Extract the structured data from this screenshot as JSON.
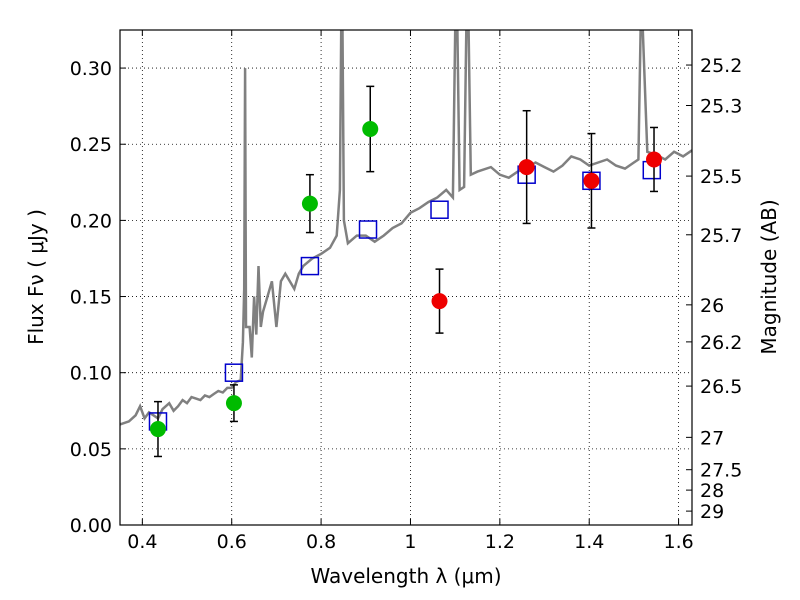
{
  "chart_data": {
    "type": "scatter",
    "xlabel": "Wavelength  λ (μm)",
    "ylabel": "Flux  Fν  ( μJy )",
    "ylabel2": "Magnitude (AB)",
    "xlim": [
      0.35,
      1.63
    ],
    "ylim": [
      0.0,
      0.325
    ],
    "grid": true,
    "x_ticks": [
      0.4,
      0.6,
      0.8,
      1.0,
      1.2,
      1.4,
      1.6
    ],
    "x_tick_labels": [
      "0.4",
      "0.6",
      "0.8",
      "1",
      "1.2",
      "1.4",
      "1.6"
    ],
    "y_ticks": [
      0.0,
      0.05,
      0.1,
      0.15,
      0.2,
      0.25,
      0.3
    ],
    "y_tick_labels": [
      "0.00",
      "0.05",
      "0.10",
      "0.15",
      "0.20",
      "0.25",
      "0.30"
    ],
    "mag_ticks": [
      "25.2",
      "25.3",
      "25.5",
      "25.7",
      "26",
      "26.2",
      "26.5",
      "27",
      "27.5",
      "28",
      "29"
    ],
    "colors": {
      "model": "#808080",
      "green": "#00bb00",
      "red": "#ee0000",
      "square": "#0000cc",
      "errorbar": "#000000"
    },
    "series": [
      {
        "kind": "line",
        "color": "#808080",
        "points": [
          [
            0.35,
            0.066
          ],
          [
            0.37,
            0.068
          ],
          [
            0.385,
            0.072
          ],
          [
            0.395,
            0.078
          ],
          [
            0.405,
            0.07
          ],
          [
            0.415,
            0.074
          ],
          [
            0.425,
            0.072
          ],
          [
            0.435,
            0.07
          ],
          [
            0.445,
            0.076
          ],
          [
            0.46,
            0.08
          ],
          [
            0.47,
            0.075
          ],
          [
            0.48,
            0.078
          ],
          [
            0.49,
            0.082
          ],
          [
            0.5,
            0.08
          ],
          [
            0.51,
            0.084
          ],
          [
            0.52,
            0.083
          ],
          [
            0.53,
            0.082
          ],
          [
            0.54,
            0.085
          ],
          [
            0.55,
            0.084
          ],
          [
            0.56,
            0.086
          ],
          [
            0.57,
            0.088
          ],
          [
            0.58,
            0.087
          ],
          [
            0.59,
            0.09
          ],
          [
            0.6,
            0.09
          ],
          [
            0.61,
            0.094
          ],
          [
            0.62,
            0.095
          ],
          [
            0.625,
            0.12
          ],
          [
            0.628,
            0.155
          ],
          [
            0.63,
            0.3
          ],
          [
            0.632,
            0.13
          ],
          [
            0.64,
            0.13
          ],
          [
            0.645,
            0.11
          ],
          [
            0.65,
            0.15
          ],
          [
            0.655,
            0.125
          ],
          [
            0.66,
            0.17
          ],
          [
            0.665,
            0.13
          ],
          [
            0.67,
            0.14
          ],
          [
            0.68,
            0.15
          ],
          [
            0.69,
            0.16
          ],
          [
            0.7,
            0.13
          ],
          [
            0.71,
            0.16
          ],
          [
            0.72,
            0.165
          ],
          [
            0.73,
            0.16
          ],
          [
            0.74,
            0.155
          ],
          [
            0.75,
            0.165
          ],
          [
            0.76,
            0.17
          ],
          [
            0.78,
            0.175
          ],
          [
            0.8,
            0.178
          ],
          [
            0.82,
            0.182
          ],
          [
            0.835,
            0.19
          ],
          [
            0.842,
            0.22
          ],
          [
            0.845,
            0.325
          ],
          [
            0.848,
            0.325
          ],
          [
            0.851,
            0.2
          ],
          [
            0.86,
            0.185
          ],
          [
            0.88,
            0.19
          ],
          [
            0.9,
            0.19
          ],
          [
            0.91,
            0.188
          ],
          [
            0.92,
            0.186
          ],
          [
            0.94,
            0.19
          ],
          [
            0.96,
            0.195
          ],
          [
            0.98,
            0.198
          ],
          [
            1.0,
            0.205
          ],
          [
            1.02,
            0.208
          ],
          [
            1.04,
            0.212
          ],
          [
            1.06,
            0.215
          ],
          [
            1.08,
            0.22
          ],
          [
            1.095,
            0.215
          ],
          [
            1.1,
            0.325
          ],
          [
            1.105,
            0.325
          ],
          [
            1.11,
            0.22
          ],
          [
            1.12,
            0.222
          ],
          [
            1.125,
            0.325
          ],
          [
            1.13,
            0.325
          ],
          [
            1.135,
            0.23
          ],
          [
            1.15,
            0.232
          ],
          [
            1.18,
            0.235
          ],
          [
            1.2,
            0.23
          ],
          [
            1.22,
            0.228
          ],
          [
            1.24,
            0.232
          ],
          [
            1.26,
            0.235
          ],
          [
            1.28,
            0.238
          ],
          [
            1.3,
            0.235
          ],
          [
            1.32,
            0.232
          ],
          [
            1.34,
            0.236
          ],
          [
            1.36,
            0.242
          ],
          [
            1.38,
            0.24
          ],
          [
            1.4,
            0.236
          ],
          [
            1.42,
            0.238
          ],
          [
            1.44,
            0.24
          ],
          [
            1.46,
            0.236
          ],
          [
            1.48,
            0.234
          ],
          [
            1.5,
            0.238
          ],
          [
            1.51,
            0.24
          ],
          [
            1.515,
            0.325
          ],
          [
            1.52,
            0.325
          ],
          [
            1.53,
            0.245
          ],
          [
            1.55,
            0.243
          ],
          [
            1.57,
            0.24
          ],
          [
            1.59,
            0.245
          ],
          [
            1.61,
            0.242
          ],
          [
            1.63,
            0.246
          ]
        ]
      },
      {
        "kind": "square",
        "color": "#0000cc",
        "points": [
          [
            0.435,
            0.068
          ],
          [
            0.605,
            0.1
          ],
          [
            0.775,
            0.17
          ],
          [
            0.905,
            0.194
          ],
          [
            1.065,
            0.207
          ],
          [
            1.26,
            0.23
          ],
          [
            1.405,
            0.226
          ],
          [
            1.54,
            0.233
          ]
        ]
      },
      {
        "kind": "errorbar",
        "color": "#00bb00",
        "points": [
          [
            0.435,
            0.063,
            0.018
          ],
          [
            0.605,
            0.08,
            0.012
          ],
          [
            0.775,
            0.211,
            0.019
          ],
          [
            0.91,
            0.26,
            0.028
          ]
        ]
      },
      {
        "kind": "errorbar",
        "color": "#ee0000",
        "points": [
          [
            1.065,
            0.147,
            0.021
          ],
          [
            1.26,
            0.235,
            0.037
          ],
          [
            1.405,
            0.226,
            0.031
          ],
          [
            1.545,
            0.24,
            0.021
          ]
        ]
      }
    ]
  }
}
